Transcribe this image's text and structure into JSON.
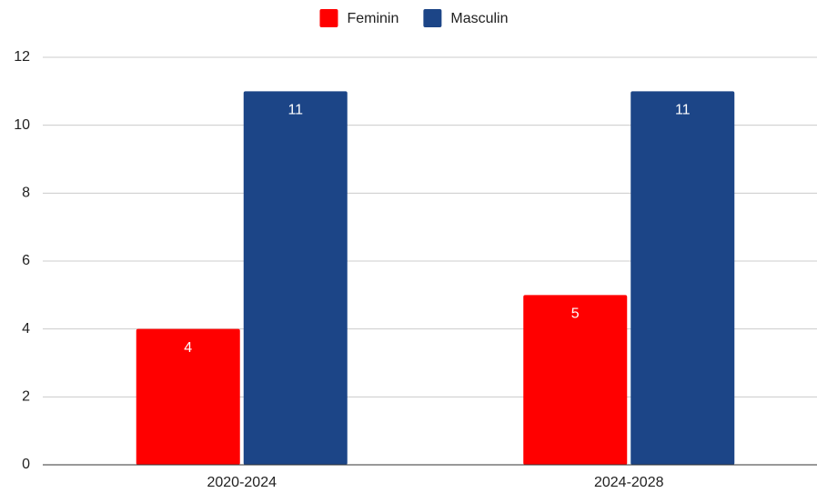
{
  "chart_data": {
    "type": "bar",
    "categories": [
      "2020-2024",
      "2024-2028"
    ],
    "series": [
      {
        "name": "Feminin",
        "color": "#ff0000",
        "values": [
          4,
          5
        ]
      },
      {
        "name": "Masculin",
        "color": "#1c4587",
        "values": [
          11,
          11
        ]
      }
    ],
    "ylim": [
      0,
      12
    ],
    "yticks": [
      0,
      2,
      4,
      6,
      8,
      10,
      12
    ],
    "grid": true,
    "legend": "top",
    "data_labels": true
  }
}
